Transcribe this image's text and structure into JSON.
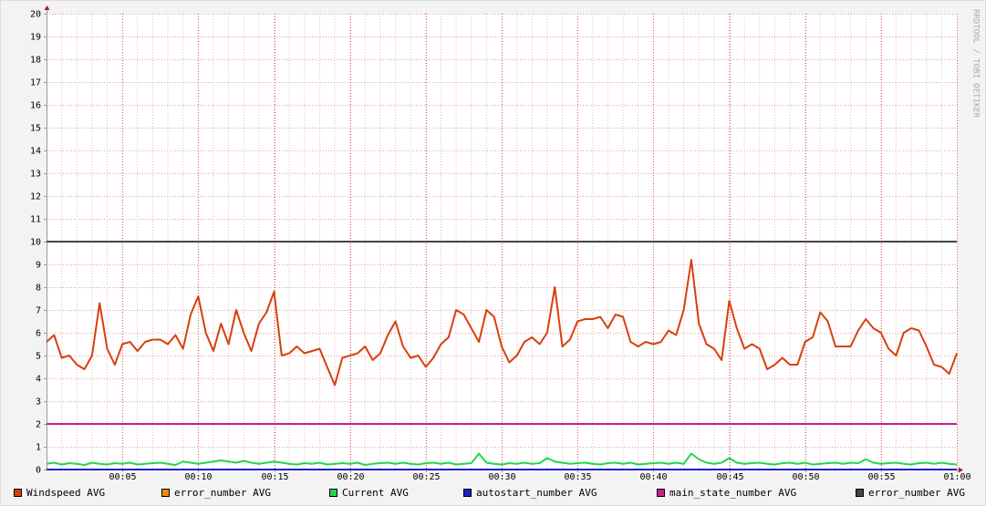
{
  "chart_data": {
    "type": "line",
    "watermark": "RRDTOOL / TOBI OETIKER",
    "xlim": [
      0,
      60
    ],
    "ylim": [
      0,
      20
    ],
    "xticks": [
      {
        "value": 5,
        "label": "00:05"
      },
      {
        "value": 10,
        "label": "00:10"
      },
      {
        "value": 15,
        "label": "00:15"
      },
      {
        "value": 20,
        "label": "00:20"
      },
      {
        "value": 25,
        "label": "00:25"
      },
      {
        "value": 30,
        "label": "00:30"
      },
      {
        "value": 35,
        "label": "00:35"
      },
      {
        "value": 40,
        "label": "00:40"
      },
      {
        "value": 45,
        "label": "00:45"
      },
      {
        "value": 50,
        "label": "00:50"
      },
      {
        "value": 55,
        "label": "00:55"
      },
      {
        "value": 60,
        "label": "01:00"
      }
    ],
    "yticks": [
      0,
      1,
      2,
      3,
      4,
      5,
      6,
      7,
      8,
      9,
      10,
      11,
      12,
      13,
      14,
      15,
      16,
      17,
      18,
      19,
      20
    ],
    "grid": true,
    "x": [
      0,
      0.5,
      1,
      1.5,
      2,
      2.5,
      3,
      3.5,
      4,
      4.5,
      5,
      5.5,
      6,
      6.5,
      7,
      7.5,
      8,
      8.5,
      9,
      9.5,
      10,
      10.5,
      11,
      11.5,
      12,
      12.5,
      13,
      13.5,
      14,
      14.5,
      15,
      15.5,
      16,
      16.5,
      17,
      17.5,
      18,
      18.5,
      19,
      19.5,
      20,
      20.5,
      21,
      21.5,
      22,
      22.5,
      23,
      23.5,
      24,
      24.5,
      25,
      25.5,
      26,
      26.5,
      27,
      27.5,
      28,
      28.5,
      29,
      29.5,
      30,
      30.5,
      31,
      31.5,
      32,
      32.5,
      33,
      33.5,
      34,
      34.5,
      35,
      35.5,
      36,
      36.5,
      37,
      37.5,
      38,
      38.5,
      39,
      39.5,
      40,
      40.5,
      41,
      41.5,
      42,
      42.5,
      43,
      43.5,
      44,
      44.5,
      45,
      45.5,
      46,
      46.5,
      47,
      47.5,
      48,
      48.5,
      49,
      49.5,
      50,
      50.5,
      51,
      51.5,
      52,
      52.5,
      53,
      53.5,
      54,
      54.5,
      55,
      55.5,
      56,
      56.5,
      57,
      57.5,
      58,
      58.5,
      59,
      59.5,
      60
    ],
    "series": [
      {
        "name": "Windspeed AVG",
        "color": "#d7400c",
        "values": [
          5.6,
          5.9,
          4.9,
          5.0,
          4.6,
          4.4,
          5.0,
          7.3,
          5.3,
          4.6,
          5.5,
          5.6,
          5.2,
          5.6,
          5.7,
          5.7,
          5.5,
          5.9,
          5.3,
          6.8,
          7.6,
          6.0,
          5.2,
          6.4,
          5.5,
          7.0,
          6.0,
          5.2,
          6.4,
          6.9,
          7.8,
          5.0,
          5.1,
          5.4,
          5.1,
          5.2,
          5.3,
          4.5,
          3.7,
          4.9,
          5.0,
          5.1,
          5.4,
          4.8,
          5.1,
          5.9,
          6.5,
          5.4,
          4.9,
          5.0,
          4.5,
          4.9,
          5.5,
          5.8,
          7.0,
          6.8,
          6.2,
          5.6,
          7.0,
          6.7,
          5.4,
          4.7,
          5.0,
          5.6,
          5.8,
          5.5,
          6.0,
          8.0,
          5.4,
          5.7,
          6.5,
          6.6,
          6.6,
          6.7,
          6.2,
          6.8,
          6.7,
          5.6,
          5.4,
          5.6,
          5.5,
          5.6,
          6.1,
          5.9,
          7.0,
          9.2,
          6.4,
          5.5,
          5.3,
          4.8,
          7.4,
          6.2,
          5.3,
          5.5,
          5.3,
          4.4,
          4.6,
          4.9,
          4.6,
          4.6,
          5.6,
          5.8,
          6.9,
          6.5,
          5.4,
          5.4,
          5.4,
          6.1,
          6.6,
          6.2,
          6.0,
          5.3,
          5.0,
          6.0,
          6.2,
          6.1,
          5.4,
          4.6,
          4.5,
          4.2,
          5.1
        ]
      },
      {
        "name": "error_number AVG",
        "color": "#ea8a10",
        "values": [
          0,
          0,
          0,
          0,
          0,
          0,
          0,
          0,
          0,
          0,
          0,
          0,
          0,
          0,
          0,
          0,
          0,
          0,
          0,
          0,
          0,
          0,
          0,
          0,
          0,
          0,
          0,
          0,
          0,
          0,
          0,
          0,
          0,
          0,
          0,
          0,
          0,
          0,
          0,
          0,
          0,
          0,
          0,
          0,
          0,
          0,
          0,
          0,
          0,
          0,
          0,
          0,
          0,
          0,
          0,
          0,
          0,
          0,
          0,
          0,
          0,
          0,
          0,
          0,
          0,
          0,
          0,
          0,
          0,
          0,
          0,
          0,
          0,
          0,
          0,
          0,
          0,
          0,
          0,
          0,
          0,
          0,
          0,
          0,
          0,
          0,
          0,
          0,
          0,
          0,
          0,
          0,
          0,
          0,
          0,
          0,
          0,
          0,
          0,
          0,
          0,
          0,
          0,
          0,
          0,
          0,
          0,
          0,
          0,
          0,
          0,
          0,
          0,
          0,
          0,
          0,
          0,
          0,
          0,
          0,
          0
        ]
      },
      {
        "name": "Current AVG",
        "color": "#22d84a",
        "values": [
          0.25,
          0.3,
          0.22,
          0.28,
          0.25,
          0.2,
          0.3,
          0.25,
          0.22,
          0.28,
          0.25,
          0.3,
          0.22,
          0.25,
          0.28,
          0.3,
          0.25,
          0.2,
          0.35,
          0.3,
          0.25,
          0.3,
          0.35,
          0.4,
          0.35,
          0.3,
          0.38,
          0.3,
          0.25,
          0.3,
          0.35,
          0.3,
          0.25,
          0.22,
          0.28,
          0.25,
          0.3,
          0.22,
          0.25,
          0.28,
          0.25,
          0.3,
          0.2,
          0.25,
          0.28,
          0.3,
          0.25,
          0.3,
          0.25,
          0.22,
          0.28,
          0.3,
          0.25,
          0.3,
          0.22,
          0.25,
          0.28,
          0.7,
          0.3,
          0.25,
          0.22,
          0.28,
          0.25,
          0.3,
          0.25,
          0.28,
          0.5,
          0.35,
          0.3,
          0.25,
          0.28,
          0.3,
          0.25,
          0.22,
          0.28,
          0.3,
          0.25,
          0.3,
          0.22,
          0.25,
          0.28,
          0.3,
          0.25,
          0.3,
          0.25,
          0.7,
          0.45,
          0.3,
          0.25,
          0.3,
          0.5,
          0.3,
          0.25,
          0.28,
          0.3,
          0.25,
          0.22,
          0.28,
          0.3,
          0.25,
          0.3,
          0.22,
          0.25,
          0.28,
          0.3,
          0.25,
          0.3,
          0.28,
          0.45,
          0.3,
          0.25,
          0.28,
          0.3,
          0.25,
          0.22,
          0.28,
          0.3,
          0.25,
          0.3,
          0.25,
          0.22
        ]
      },
      {
        "name": "autostart_number AVG",
        "color": "#2020d0",
        "values": [
          0,
          0,
          0,
          0,
          0,
          0,
          0,
          0,
          0,
          0,
          0,
          0,
          0,
          0,
          0,
          0,
          0,
          0,
          0,
          0,
          0,
          0,
          0,
          0,
          0,
          0,
          0,
          0,
          0,
          0,
          0,
          0,
          0,
          0,
          0,
          0,
          0,
          0,
          0,
          0,
          0,
          0,
          0,
          0,
          0,
          0,
          0,
          0,
          0,
          0,
          0,
          0,
          0,
          0,
          0,
          0,
          0,
          0,
          0,
          0,
          0,
          0,
          0,
          0,
          0,
          0,
          0,
          0,
          0,
          0,
          0,
          0,
          0,
          0,
          0,
          0,
          0,
          0,
          0,
          0,
          0,
          0,
          0,
          0,
          0,
          0,
          0,
          0,
          0,
          0,
          0,
          0,
          0,
          0,
          0,
          0,
          0,
          0,
          0,
          0,
          0,
          0,
          0,
          0,
          0,
          0,
          0,
          0,
          0,
          0,
          0,
          0,
          0,
          0,
          0,
          0,
          0,
          0,
          0,
          0,
          0
        ]
      },
      {
        "name": "main_state_number AVG",
        "color": "#c81e96",
        "values": [
          2,
          2,
          2,
          2,
          2,
          2,
          2,
          2,
          2,
          2,
          2,
          2,
          2,
          2,
          2,
          2,
          2,
          2,
          2,
          2,
          2,
          2,
          2,
          2,
          2,
          2,
          2,
          2,
          2,
          2,
          2,
          2,
          2,
          2,
          2,
          2,
          2,
          2,
          2,
          2,
          2,
          2,
          2,
          2,
          2,
          2,
          2,
          2,
          2,
          2,
          2,
          2,
          2,
          2,
          2,
          2,
          2,
          2,
          2,
          2,
          2,
          2,
          2,
          2,
          2,
          2,
          2,
          2,
          2,
          2,
          2,
          2,
          2,
          2,
          2,
          2,
          2,
          2,
          2,
          2,
          2,
          2,
          2,
          2,
          2,
          2,
          2,
          2,
          2,
          2,
          2,
          2,
          2,
          2,
          2,
          2,
          2,
          2,
          2,
          2,
          2,
          2,
          2,
          2,
          2,
          2,
          2,
          2,
          2,
          2,
          2,
          2,
          2,
          2,
          2,
          2,
          2,
          2,
          2,
          2,
          2
        ]
      },
      {
        "name": "error_number AVG",
        "color": "#444444",
        "values": [
          10,
          10,
          10,
          10,
          10,
          10,
          10,
          10,
          10,
          10,
          10,
          10,
          10,
          10,
          10,
          10,
          10,
          10,
          10,
          10,
          10,
          10,
          10,
          10,
          10,
          10,
          10,
          10,
          10,
          10,
          10,
          10,
          10,
          10,
          10,
          10,
          10,
          10,
          10,
          10,
          10,
          10,
          10,
          10,
          10,
          10,
          10,
          10,
          10,
          10,
          10,
          10,
          10,
          10,
          10,
          10,
          10,
          10,
          10,
          10,
          10,
          10,
          10,
          10,
          10,
          10,
          10,
          10,
          10,
          10,
          10,
          10,
          10,
          10,
          10,
          10,
          10,
          10,
          10,
          10,
          10,
          10,
          10,
          10,
          10,
          10,
          10,
          10,
          10,
          10,
          10,
          10,
          10,
          10,
          10,
          10,
          10,
          10,
          10,
          10,
          10,
          10,
          10,
          10,
          10,
          10,
          10,
          10,
          10,
          10,
          10,
          10,
          10,
          10,
          10,
          10,
          10,
          10,
          10,
          10,
          10
        ]
      }
    ]
  }
}
